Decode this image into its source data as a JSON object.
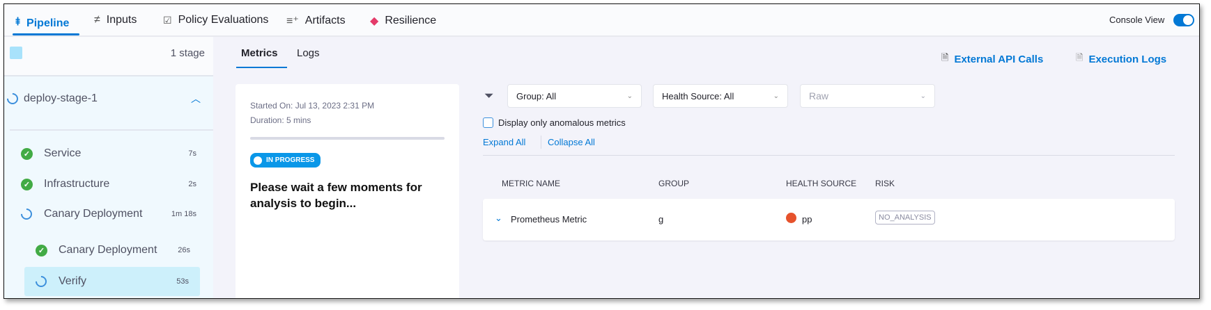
{
  "tabs": [
    {
      "label": "Pipeline",
      "icon": "pipeline-icon"
    },
    {
      "label": "Inputs",
      "icon": "inputs-icon"
    },
    {
      "label": "Policy Evaluations",
      "icon": "shield-check-icon"
    },
    {
      "label": "Artifacts",
      "icon": "artifacts-icon"
    },
    {
      "label": "Resilience",
      "icon": "resilience-icon"
    }
  ],
  "console_view": {
    "label": "Console View",
    "enabled": true
  },
  "sidebar": {
    "stage_count": "1 stage",
    "stage": {
      "name": "deploy-stage-1",
      "status": "running"
    },
    "steps": [
      {
        "label": "Service",
        "duration": "7s",
        "status": "success"
      },
      {
        "label": "Infrastructure",
        "duration": "2s",
        "status": "success"
      },
      {
        "label": "Canary Deployment",
        "duration": "1m 18s",
        "status": "running"
      },
      {
        "label": "Canary Deployment",
        "duration": "26s",
        "status": "success"
      },
      {
        "label": "Verify",
        "duration": "53s",
        "status": "running",
        "selected": true
      }
    ]
  },
  "main": {
    "tabs": [
      "Metrics",
      "Logs"
    ],
    "active_tab": "Metrics",
    "external_api_calls": "External API Calls",
    "execution_logs": "Execution Logs"
  },
  "summary": {
    "started_on": "Started On: Jul 13, 2023 2:31 PM",
    "duration": "Duration: 5 mins",
    "status": "IN PROGRESS",
    "message": "Please wait a few moments for analysis to begin..."
  },
  "filters": {
    "group": "Group: All",
    "health_source": "Health Source: All",
    "data_type": "Raw",
    "anomalous_label": "Display only anomalous metrics",
    "anomalous_checked": false,
    "expand_all": "Expand All",
    "collapse_all": "Collapse All"
  },
  "table": {
    "headers": [
      "METRIC NAME",
      "GROUP",
      "HEALTH SOURCE",
      "RISK"
    ],
    "rows": [
      {
        "metric": "Prometheus Metric",
        "group": "g",
        "health_source": "pp",
        "risk": "NO_ANALYSIS"
      }
    ]
  },
  "colors": {
    "accent": "#0278d5",
    "success": "#42ab45",
    "prometheus": "#e6522c"
  }
}
